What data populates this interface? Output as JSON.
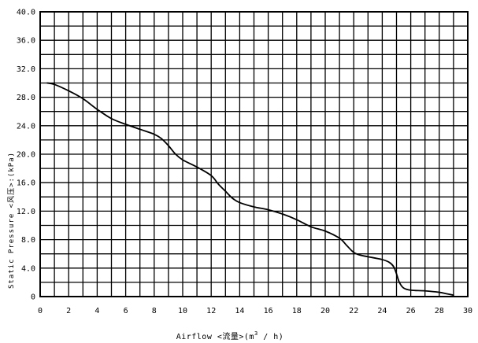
{
  "chart_data": {
    "type": "line",
    "xlabel_parts": {
      "prefix": "Airflow  <流量>(m",
      "superscript": "3",
      "suffix": " / h)"
    },
    "ylabel": "Static  Pressure  <风压>:(kPa)",
    "xlim": [
      0,
      30
    ],
    "ylim": [
      0,
      40
    ],
    "x_ticks": [
      0,
      2,
      4,
      6,
      8,
      10,
      12,
      14,
      16,
      18,
      20,
      22,
      24,
      26,
      28,
      30
    ],
    "x_tick_labels": [
      "0",
      "2",
      "4",
      "6",
      "8",
      "10",
      "12",
      "14",
      "16",
      "18",
      "20",
      "22",
      "24",
      "26",
      "28",
      "30"
    ],
    "y_ticks": [
      0,
      4,
      8,
      12,
      16,
      20,
      24,
      28,
      32,
      36,
      40
    ],
    "y_tick_labels": [
      "0",
      "4.0",
      "8.0",
      "12.0",
      "16.0",
      "20.0",
      "24.0",
      "28.0",
      "32.0",
      "36.0",
      "40.0"
    ],
    "grid": true,
    "grid_x_step": 1,
    "grid_y_step": 2,
    "series": [
      {
        "x": [
          0.5,
          1,
          2,
          3,
          4,
          5,
          6,
          7,
          8,
          8.5,
          9,
          9.5,
          10,
          11,
          12,
          12.5,
          13,
          13.5,
          14,
          15,
          16,
          17,
          18,
          19,
          20,
          21,
          21.5,
          22,
          22.5,
          23,
          24,
          24.5,
          24.8,
          25,
          25.2,
          25.5,
          26,
          27,
          28,
          28.5,
          29
        ],
        "y": [
          30,
          29.8,
          28.9,
          27.8,
          26.3,
          25,
          24.2,
          23.5,
          22.8,
          22.2,
          21.2,
          20,
          19.2,
          18.2,
          17,
          15.8,
          14.8,
          13.8,
          13.2,
          12.6,
          12.2,
          11.6,
          10.8,
          9.8,
          9.2,
          8.2,
          7.2,
          6.2,
          5.8,
          5.6,
          5.2,
          4.8,
          4.2,
          3.2,
          2.0,
          1.2,
          0.9,
          0.8,
          0.6,
          0.4,
          0.2
        ]
      }
    ]
  }
}
